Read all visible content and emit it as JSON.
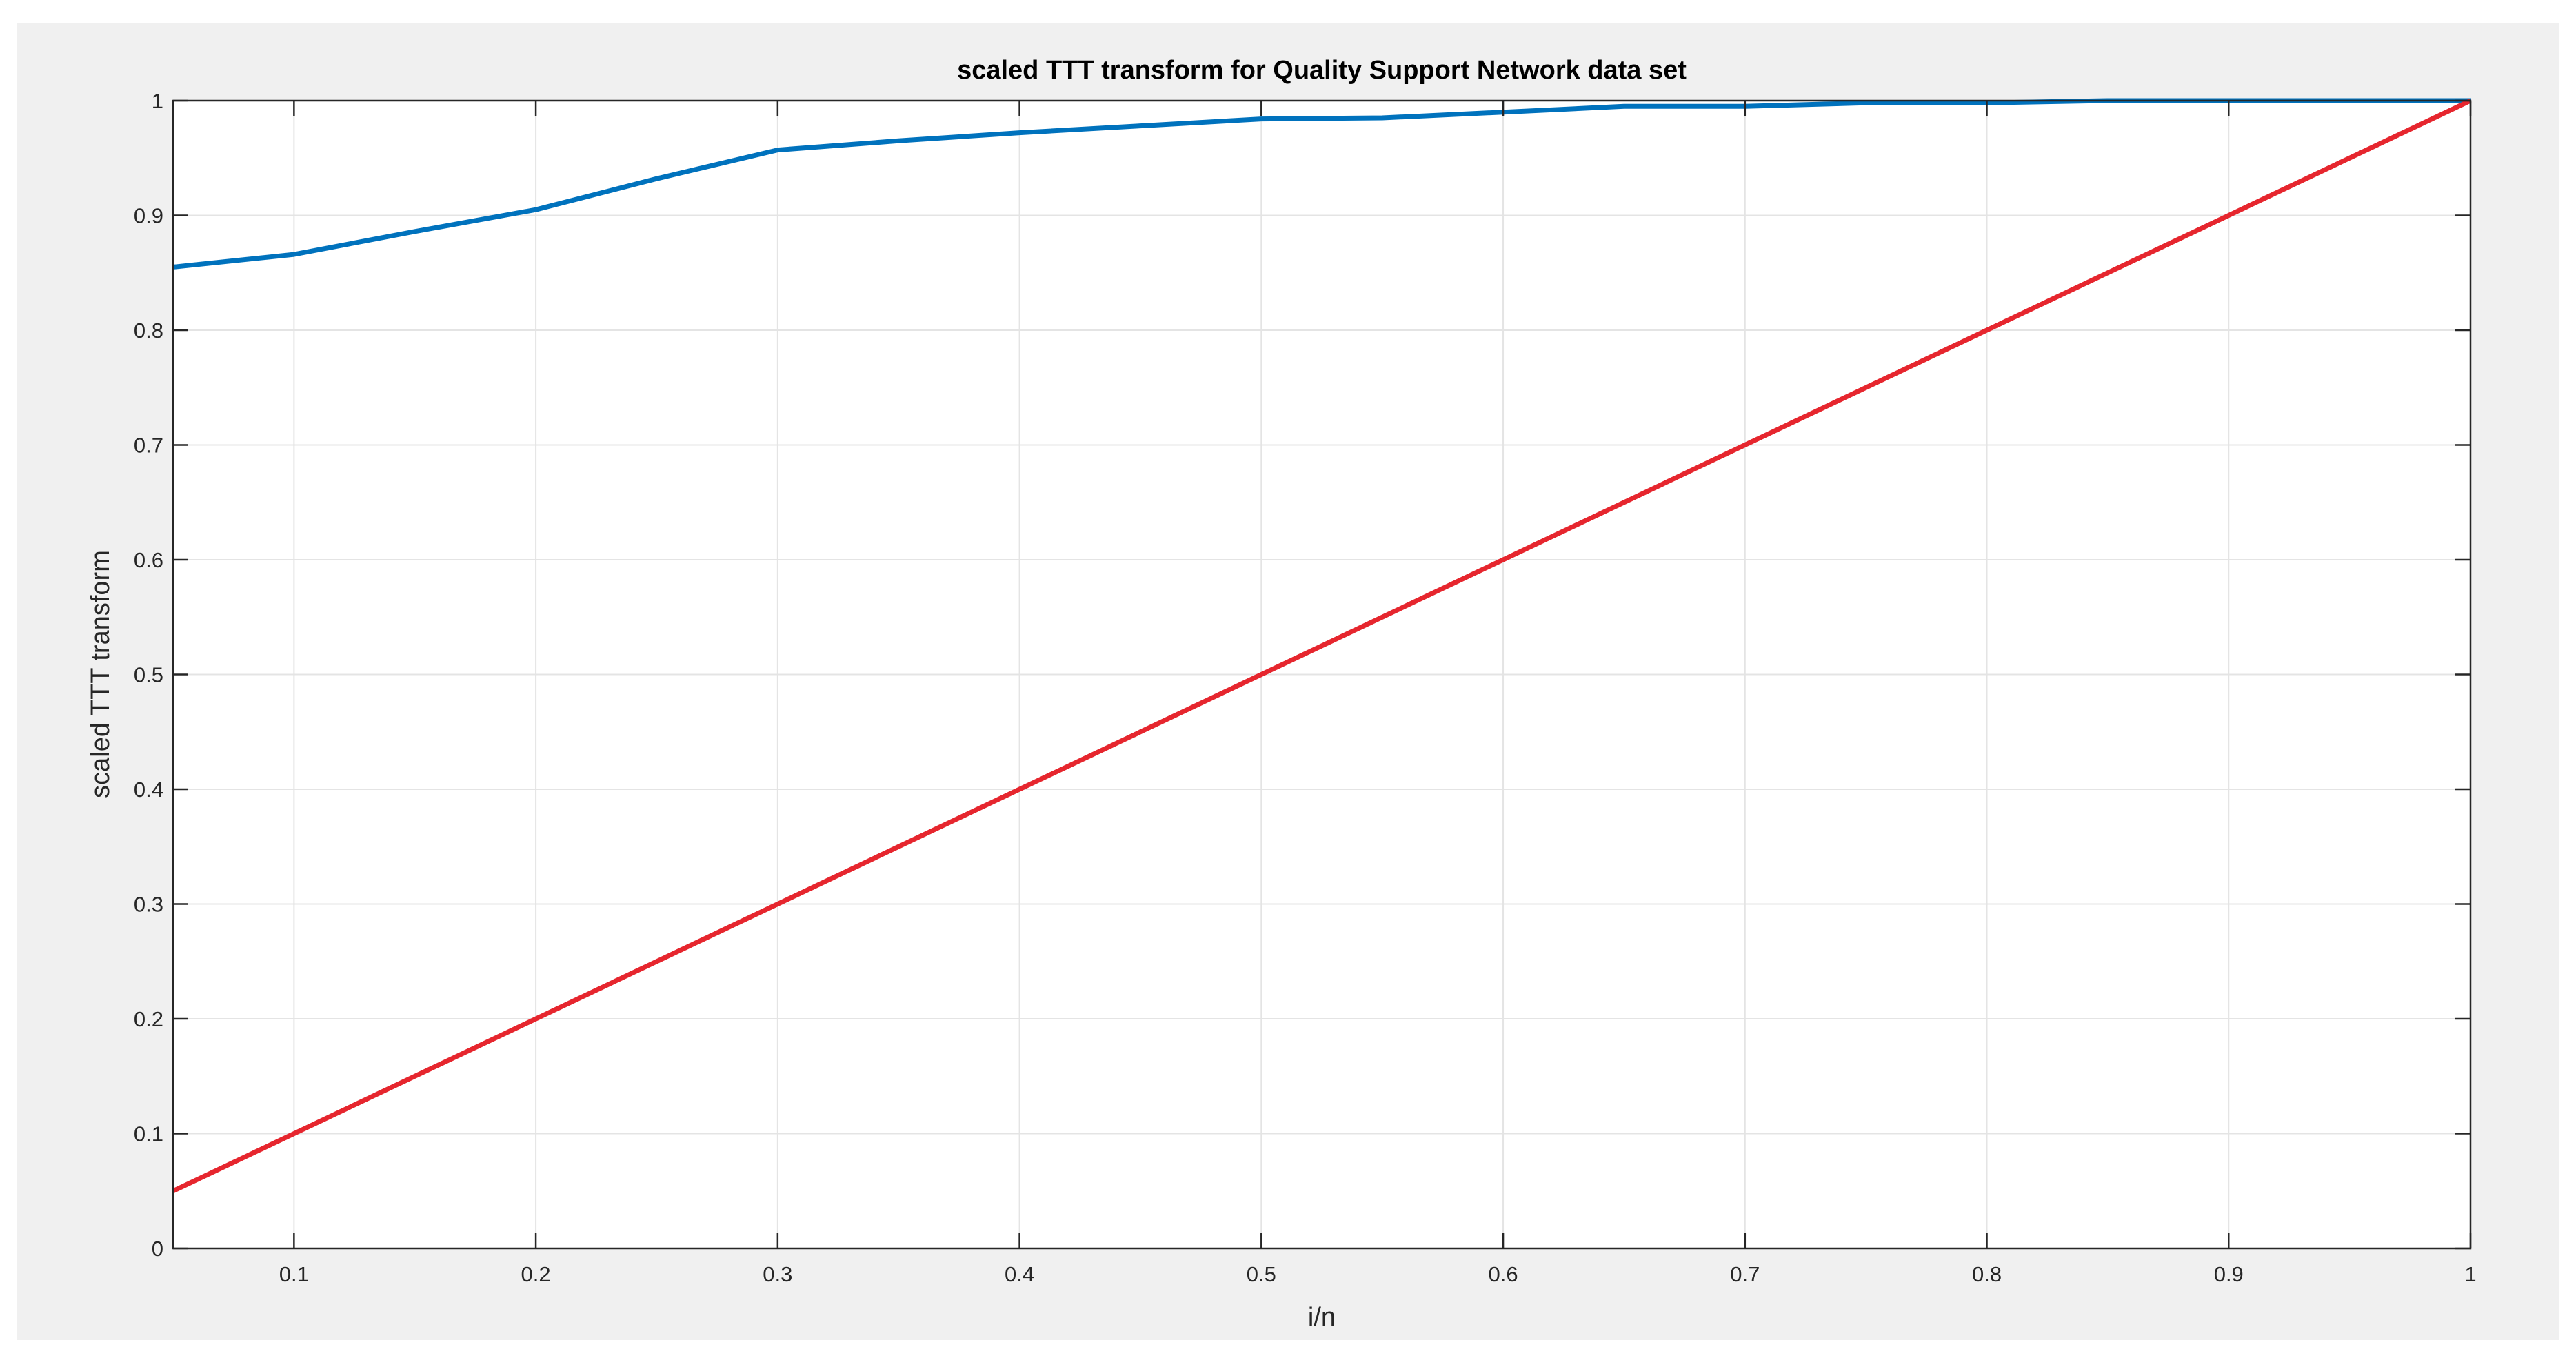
{
  "chart_data": {
    "type": "line",
    "title": "scaled TTT transform for Quality Support Network data set",
    "xlabel": "i/n",
    "ylabel": "scaled TTT transform",
    "xlim": [
      0.05,
      1
    ],
    "ylim": [
      0,
      1
    ],
    "xticks": [
      0.1,
      0.2,
      0.3,
      0.4,
      0.5,
      0.6,
      0.7,
      0.8,
      0.9,
      1
    ],
    "xtick_labels": [
      "0.1",
      "0.2",
      "0.3",
      "0.4",
      "0.5",
      "0.6",
      "0.7",
      "0.8",
      "0.9",
      "1"
    ],
    "yticks": [
      0,
      0.1,
      0.2,
      0.3,
      0.4,
      0.5,
      0.6,
      0.7,
      0.8,
      0.9,
      1
    ],
    "ytick_labels": [
      "0",
      "0.1",
      "0.2",
      "0.3",
      "0.4",
      "0.5",
      "0.6",
      "0.7",
      "0.8",
      "0.9",
      "1"
    ],
    "grid": true,
    "series": [
      {
        "color": "#0072bd",
        "x": [
          0.05,
          0.1,
          0.15,
          0.2,
          0.25,
          0.3,
          0.35,
          0.4,
          0.45,
          0.5,
          0.55,
          0.6,
          0.65,
          0.7,
          0.75,
          0.8,
          0.85,
          0.9,
          0.95,
          1
        ],
        "values": [
          0.855,
          0.866,
          0.886,
          0.905,
          0.932,
          0.957,
          0.965,
          0.972,
          0.978,
          0.984,
          0.985,
          0.99,
          0.995,
          0.995,
          0.998,
          0.998,
          1.0,
          1.0,
          1.0,
          1.0
        ]
      },
      {
        "color": "#e6262e",
        "x": [
          0.05,
          1
        ],
        "values": [
          0.05,
          1
        ]
      }
    ]
  }
}
